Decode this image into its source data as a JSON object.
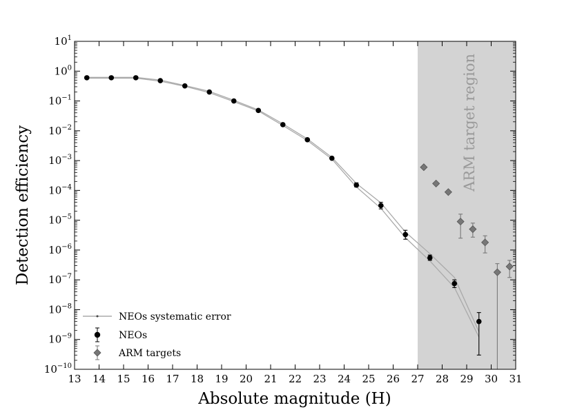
{
  "chart_data": {
    "type": "scatter",
    "xlabel": "Absolute magnitude (H)",
    "ylabel": "Detection efficiency",
    "xlim": [
      13,
      31
    ],
    "ylim_log10": [
      -10,
      1
    ],
    "y_scale": "log",
    "x_ticks": [
      13,
      14,
      15,
      16,
      17,
      18,
      19,
      20,
      21,
      22,
      23,
      24,
      25,
      26,
      27,
      28,
      29,
      30,
      31
    ],
    "y_ticks": [
      {
        "base": "10",
        "exp": "1",
        "log": 1
      },
      {
        "base": "10",
        "exp": "0",
        "log": 0
      },
      {
        "base": "10",
        "exp": "−1",
        "log": -1
      },
      {
        "base": "10",
        "exp": "−2",
        "log": -2
      },
      {
        "base": "10",
        "exp": "−3",
        "log": -3
      },
      {
        "base": "10",
        "exp": "−4",
        "log": -4
      },
      {
        "base": "10",
        "exp": "−5",
        "log": -5
      },
      {
        "base": "10",
        "exp": "−6",
        "log": -6
      },
      {
        "base": "10",
        "exp": "−7",
        "log": -7
      },
      {
        "base": "10",
        "exp": "−8",
        "log": -8
      },
      {
        "base": "10",
        "exp": "−9",
        "log": -9
      },
      {
        "base": "10",
        "exp": "−10",
        "log": -10
      }
    ],
    "shaded_region": {
      "label": "ARM target region",
      "x_from": 27,
      "x_to": 31,
      "color": "#d3d3d3"
    },
    "legend": {
      "placement": "lower-left",
      "entries": [
        "NEOs systematic error",
        "NEOs",
        "ARM targets"
      ]
    },
    "series": [
      {
        "name": "NEOs",
        "marker": "circle",
        "color": "#000000",
        "points": [
          {
            "x": 13.5,
            "y": 0.6
          },
          {
            "x": 14.5,
            "y": 0.6
          },
          {
            "x": 15.5,
            "y": 0.6
          },
          {
            "x": 16.5,
            "y": 0.48
          },
          {
            "x": 17.5,
            "y": 0.32
          },
          {
            "x": 18.5,
            "y": 0.2
          },
          {
            "x": 19.5,
            "y": 0.1
          },
          {
            "x": 20.5,
            "y": 0.048
          },
          {
            "x": 21.5,
            "y": 0.016
          },
          {
            "x": 22.5,
            "y": 0.005
          },
          {
            "x": 23.5,
            "y": 0.0012
          },
          {
            "x": 24.5,
            "y": 0.00015,
            "ylo": 0.00013,
            "yhi": 0.00018
          },
          {
            "x": 25.5,
            "y": 3.1e-05,
            "ylo": 2.4e-05,
            "yhi": 4e-05
          },
          {
            "x": 26.5,
            "y": 3.3e-06,
            "ylo": 2.3e-06,
            "yhi": 4.6e-06
          },
          {
            "x": 27.5,
            "y": 5.5e-07,
            "ylo": 4.5e-07,
            "yhi": 6.8e-07
          },
          {
            "x": 28.5,
            "y": 7.5e-08,
            "ylo": 5.5e-08,
            "yhi": 1e-07
          },
          {
            "x": 29.5,
            "y": 4e-09,
            "ylo": 3e-10,
            "yhi": 8e-09
          }
        ]
      },
      {
        "name": "ARM targets",
        "marker": "diamond",
        "color": "#777777",
        "points": [
          {
            "x": 27.25,
            "y": 0.0006
          },
          {
            "x": 27.75,
            "y": 0.00017
          },
          {
            "x": 28.25,
            "y": 8.8e-05
          },
          {
            "x": 28.75,
            "y": 9e-06,
            "ylo": 2.5e-06,
            "yhi": 1.6e-05
          },
          {
            "x": 29.25,
            "y": 5e-06,
            "ylo": 2.7e-06,
            "yhi": 8e-06
          },
          {
            "x": 29.75,
            "y": 1.8e-06,
            "ylo": 8e-07,
            "yhi": 3e-06
          },
          {
            "x": 30.25,
            "y": 1.8e-07,
            "ylo": 1e-10,
            "yhi": 3.5e-07
          },
          {
            "x": 30.75,
            "y": 2.8e-07,
            "ylo": 1.2e-07,
            "yhi": 4.5e-07
          }
        ]
      },
      {
        "name": "NEOs systematic error",
        "marker": "line",
        "color": "#aaaaaa",
        "upper": [
          {
            "x": 13.5,
            "y": 0.62
          },
          {
            "x": 14.5,
            "y": 0.62
          },
          {
            "x": 15.5,
            "y": 0.62
          },
          {
            "x": 16.5,
            "y": 0.5
          },
          {
            "x": 17.5,
            "y": 0.33
          },
          {
            "x": 18.5,
            "y": 0.21
          },
          {
            "x": 19.5,
            "y": 0.105
          },
          {
            "x": 20.5,
            "y": 0.05
          },
          {
            "x": 21.5,
            "y": 0.017
          },
          {
            "x": 22.5,
            "y": 0.0053
          },
          {
            "x": 23.5,
            "y": 0.00128
          },
          {
            "x": 24.5,
            "y": 0.00017
          },
          {
            "x": 25.5,
            "y": 3.8e-05
          },
          {
            "x": 26.5,
            "y": 4e-06
          },
          {
            "x": 27.5,
            "y": 7.5e-07
          },
          {
            "x": 28.5,
            "y": 1.2e-07
          },
          {
            "x": 29.5,
            "y": 1.8e-09
          }
        ],
        "lower": [
          {
            "x": 13.5,
            "y": 0.58
          },
          {
            "x": 14.5,
            "y": 0.58
          },
          {
            "x": 15.5,
            "y": 0.58
          },
          {
            "x": 16.5,
            "y": 0.46
          },
          {
            "x": 17.5,
            "y": 0.31
          },
          {
            "x": 18.5,
            "y": 0.19
          },
          {
            "x": 19.5,
            "y": 0.095
          },
          {
            "x": 20.5,
            "y": 0.046
          },
          {
            "x": 21.5,
            "y": 0.015
          },
          {
            "x": 22.5,
            "y": 0.0047
          },
          {
            "x": 23.5,
            "y": 0.00112
          },
          {
            "x": 24.5,
            "y": 0.00013
          },
          {
            "x": 25.5,
            "y": 2.5e-05
          },
          {
            "x": 26.5,
            "y": 2.6e-06
          },
          {
            "x": 27.5,
            "y": 4.3e-07
          },
          {
            "x": 28.5,
            "y": 5.5e-08
          },
          {
            "x": 29.5,
            "y": 1.2e-09
          }
        ]
      }
    ]
  }
}
